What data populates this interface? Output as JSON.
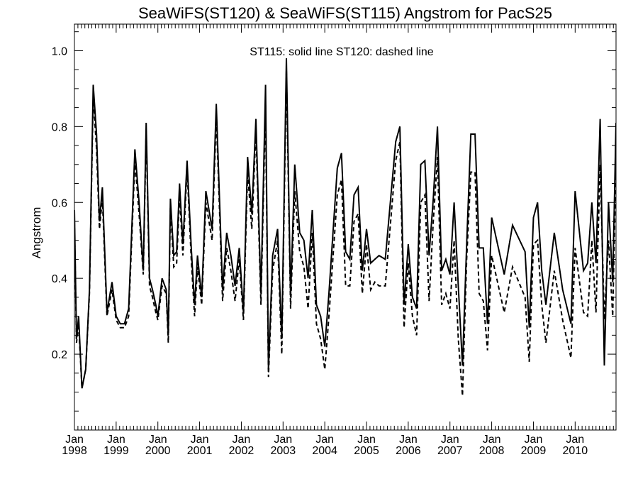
{
  "chart_data": {
    "type": "line",
    "title": "SeaWiFS(ST120) & SeaWiFS(ST115)  Angstrom for PacS25",
    "ylabel": "Angstrom",
    "xlabel": "",
    "annotation": "ST115: solid line   ST120: dashed line",
    "ylim": [
      0.0,
      1.07
    ],
    "xlim": [
      1998.0,
      2010.98
    ],
    "grid": false,
    "yticks": [
      {
        "value": 0.2,
        "label": "0.2"
      },
      {
        "value": 0.4,
        "label": "0.4"
      },
      {
        "value": 0.6,
        "label": "0.6"
      },
      {
        "value": 0.8,
        "label": "0.8"
      },
      {
        "value": 1.0,
        "label": "1.0"
      }
    ],
    "xticks": [
      {
        "value": 1998,
        "month": "Jan",
        "year": "1998"
      },
      {
        "value": 1999,
        "month": "Jan",
        "year": "1999"
      },
      {
        "value": 2000,
        "month": "Jan",
        "year": "2000"
      },
      {
        "value": 2001,
        "month": "Jan",
        "year": "2001"
      },
      {
        "value": 2002,
        "month": "Jan",
        "year": "2002"
      },
      {
        "value": 2003,
        "month": "Jan",
        "year": "2003"
      },
      {
        "value": 2004,
        "month": "Jan",
        "year": "2004"
      },
      {
        "value": 2005,
        "month": "Jan",
        "year": "2005"
      },
      {
        "value": 2006,
        "month": "Jan",
        "year": "2006"
      },
      {
        "value": 2007,
        "month": "Jan",
        "year": "2007"
      },
      {
        "value": 2008,
        "month": "Jan",
        "year": "2008"
      },
      {
        "value": 2009,
        "month": "Jan",
        "year": "2009"
      },
      {
        "value": 2010,
        "month": "Jan",
        "year": "2010"
      }
    ],
    "series": [
      {
        "name": "ST115",
        "style": "solid",
        "color": "#000000",
        "x": [
          1998.0,
          1998.05,
          1998.1,
          1998.18,
          1998.27,
          1998.36,
          1998.45,
          1998.53,
          1998.6,
          1998.67,
          1998.78,
          1998.9,
          1999.0,
          1999.1,
          1999.2,
          1999.3,
          1999.45,
          1999.55,
          1999.65,
          1999.72,
          1999.8,
          1999.87,
          1999.95,
          2000.0,
          2000.1,
          2000.2,
          2000.25,
          2000.3,
          2000.38,
          2000.45,
          2000.52,
          2000.6,
          2000.7,
          2000.8,
          2000.88,
          2000.95,
          2001.05,
          2001.15,
          2001.3,
          2001.4,
          2001.55,
          2001.65,
          2001.75,
          2001.85,
          2001.95,
          2002.05,
          2002.15,
          2002.25,
          2002.35,
          2002.47,
          2002.58,
          2002.65,
          2002.75,
          2002.87,
          2002.97,
          2003.08,
          2003.18,
          2003.28,
          2003.4,
          2003.5,
          2003.6,
          2003.7,
          2003.8,
          2003.9,
          2004.0,
          2004.1,
          2004.3,
          2004.4,
          2004.5,
          2004.6,
          2004.7,
          2004.8,
          2004.9,
          2005.0,
          2005.1,
          2005.2,
          2005.3,
          2005.45,
          2005.7,
          2005.8,
          2005.9,
          2006.0,
          2006.1,
          2006.2,
          2006.3,
          2006.4,
          2006.5,
          2006.6,
          2006.7,
          2006.8,
          2006.9,
          2007.0,
          2007.1,
          2007.2,
          2007.3,
          2007.4,
          2007.5,
          2007.6,
          2007.7,
          2007.8,
          2007.9,
          2008.0,
          2008.3,
          2008.5,
          2008.8,
          2008.9,
          2009.0,
          2009.1,
          2009.2,
          2009.3,
          2009.5,
          2009.7,
          2009.9,
          2010.0,
          2010.2,
          2010.3,
          2010.4,
          2010.5,
          2010.6,
          2010.7,
          2010.8,
          2010.9,
          2010.98
        ],
        "y": [
          0.58,
          0.24,
          0.3,
          0.11,
          0.16,
          0.37,
          0.91,
          0.78,
          0.55,
          0.64,
          0.31,
          0.39,
          0.3,
          0.28,
          0.28,
          0.32,
          0.74,
          0.6,
          0.42,
          0.81,
          0.4,
          0.37,
          0.33,
          0.3,
          0.4,
          0.37,
          0.25,
          0.61,
          0.46,
          0.47,
          0.65,
          0.49,
          0.71,
          0.48,
          0.33,
          0.46,
          0.35,
          0.63,
          0.53,
          0.86,
          0.37,
          0.52,
          0.46,
          0.38,
          0.48,
          0.31,
          0.72,
          0.57,
          0.82,
          0.36,
          0.91,
          0.16,
          0.46,
          0.53,
          0.24,
          0.98,
          0.35,
          0.7,
          0.52,
          0.5,
          0.4,
          0.58,
          0.33,
          0.3,
          0.22,
          0.36,
          0.69,
          0.73,
          0.47,
          0.45,
          0.62,
          0.64,
          0.42,
          0.53,
          0.44,
          0.45,
          0.46,
          0.45,
          0.76,
          0.8,
          0.33,
          0.49,
          0.35,
          0.32,
          0.7,
          0.71,
          0.46,
          0.61,
          0.8,
          0.42,
          0.45,
          0.41,
          0.6,
          0.38,
          0.17,
          0.49,
          0.78,
          0.78,
          0.48,
          0.48,
          0.28,
          0.56,
          0.41,
          0.54,
          0.47,
          0.27,
          0.56,
          0.6,
          0.42,
          0.33,
          0.52,
          0.37,
          0.28,
          0.63,
          0.42,
          0.44,
          0.6,
          0.44,
          0.82,
          0.17,
          0.6,
          0.39,
          0.81
        ]
      },
      {
        "name": "ST120",
        "style": "dashed",
        "color": "#000000",
        "x": [
          1998.0,
          1998.05,
          1998.1,
          1998.18,
          1998.27,
          1998.36,
          1998.45,
          1998.53,
          1998.6,
          1998.67,
          1998.78,
          1998.9,
          1999.0,
          1999.1,
          1999.2,
          1999.3,
          1999.45,
          1999.55,
          1999.65,
          1999.72,
          1999.8,
          1999.87,
          1999.95,
          2000.0,
          2000.1,
          2000.2,
          2000.25,
          2000.3,
          2000.38,
          2000.45,
          2000.52,
          2000.6,
          2000.7,
          2000.8,
          2000.88,
          2000.95,
          2001.05,
          2001.15,
          2001.3,
          2001.4,
          2001.55,
          2001.65,
          2001.75,
          2001.85,
          2001.95,
          2002.05,
          2002.15,
          2002.25,
          2002.35,
          2002.47,
          2002.58,
          2002.65,
          2002.75,
          2002.87,
          2002.97,
          2003.08,
          2003.18,
          2003.28,
          2003.4,
          2003.5,
          2003.6,
          2003.7,
          2003.8,
          2003.9,
          2004.0,
          2004.1,
          2004.3,
          2004.4,
          2004.5,
          2004.6,
          2004.7,
          2004.8,
          2004.9,
          2005.0,
          2005.1,
          2005.2,
          2005.3,
          2005.45,
          2005.7,
          2005.8,
          2005.9,
          2006.0,
          2006.1,
          2006.2,
          2006.3,
          2006.4,
          2006.5,
          2006.6,
          2006.7,
          2006.8,
          2006.9,
          2007.0,
          2007.1,
          2007.2,
          2007.3,
          2007.4,
          2007.5,
          2007.6,
          2007.7,
          2007.8,
          2007.9,
          2008.0,
          2008.3,
          2008.5,
          2008.8,
          2008.9,
          2009.0,
          2009.1,
          2009.2,
          2009.3,
          2009.5,
          2009.7,
          2009.9,
          2010.0,
          2010.2,
          2010.3,
          2010.4,
          2010.5,
          2010.6,
          2010.7,
          2010.8,
          2010.9,
          2010.98
        ],
        "y": [
          0.55,
          0.23,
          0.28,
          0.11,
          0.16,
          0.36,
          0.88,
          0.74,
          0.53,
          0.61,
          0.3,
          0.37,
          0.29,
          0.27,
          0.27,
          0.3,
          0.71,
          0.57,
          0.41,
          0.79,
          0.38,
          0.35,
          0.31,
          0.29,
          0.38,
          0.36,
          0.23,
          0.59,
          0.43,
          0.44,
          0.62,
          0.46,
          0.69,
          0.45,
          0.3,
          0.43,
          0.33,
          0.6,
          0.5,
          0.83,
          0.34,
          0.48,
          0.42,
          0.34,
          0.45,
          0.29,
          0.68,
          0.53,
          0.79,
          0.33,
          0.86,
          0.14,
          0.42,
          0.5,
          0.2,
          0.95,
          0.32,
          0.63,
          0.47,
          0.43,
          0.32,
          0.52,
          0.28,
          0.24,
          0.16,
          0.3,
          0.62,
          0.66,
          0.38,
          0.38,
          0.55,
          0.57,
          0.36,
          0.49,
          0.37,
          0.39,
          0.38,
          0.38,
          0.71,
          0.76,
          0.27,
          0.44,
          0.3,
          0.25,
          0.6,
          0.62,
          0.34,
          0.55,
          0.72,
          0.33,
          0.36,
          0.32,
          0.5,
          0.24,
          0.09,
          0.45,
          0.68,
          0.68,
          0.36,
          0.34,
          0.21,
          0.46,
          0.31,
          0.43,
          0.35,
          0.18,
          0.49,
          0.5,
          0.33,
          0.23,
          0.42,
          0.29,
          0.19,
          0.48,
          0.31,
          0.3,
          0.5,
          0.31,
          0.7,
          0.29,
          0.5,
          0.3,
          0.72
        ]
      }
    ]
  }
}
